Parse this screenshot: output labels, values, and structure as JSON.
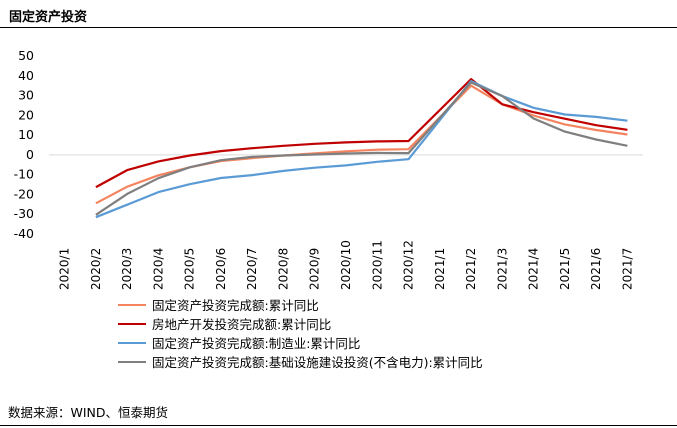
{
  "title": "固定资产投资",
  "source": "数据来源：WIND、恒泰期货",
  "chart_data": {
    "type": "line",
    "categories": [
      "2020/1",
      "2020/2",
      "2020/3",
      "2020/4",
      "2020/5",
      "2020/6",
      "2020/7",
      "2020/8",
      "2020/9",
      "2020/10",
      "2020/11",
      "2020/12",
      "2021/1",
      "2021/2",
      "2021/3",
      "2021/4",
      "2021/5",
      "2021/6",
      "2021/7"
    ],
    "ylim": [
      -40,
      50
    ],
    "yticks": [
      50,
      40,
      30,
      20,
      10,
      0,
      -10,
      -20,
      -30,
      -40
    ],
    "grid": false,
    "legend_position": "bottom",
    "series": [
      {
        "name": "固定资产投资完成额:累计同比",
        "color": "#F4845F",
        "values": [
          null,
          -24.5,
          -16.1,
          -10.3,
          -6.3,
          -3.1,
          -1.6,
          -0.3,
          0.8,
          1.8,
          2.6,
          2.9,
          null,
          35.0,
          25.6,
          19.9,
          15.4,
          12.6,
          10.3
        ]
      },
      {
        "name": "房地产开发投资完成额:累计同比",
        "color": "#C00000",
        "values": [
          null,
          -16.3,
          -7.7,
          -3.3,
          -0.3,
          1.9,
          3.4,
          4.6,
          5.6,
          6.3,
          6.8,
          7.0,
          null,
          38.3,
          25.6,
          21.6,
          18.3,
          15.0,
          12.7
        ]
      },
      {
        "name": "固定资产投资完成额:制造业:累计同比",
        "color": "#5B9BD5",
        "values": [
          null,
          -31.5,
          -25.2,
          -18.8,
          -14.8,
          -11.7,
          -10.2,
          -8.1,
          -6.5,
          -5.3,
          -3.5,
          -2.2,
          null,
          37.3,
          29.8,
          23.8,
          20.4,
          19.2,
          17.3
        ]
      },
      {
        "name": "固定资产投资完成额:基础设施建设投资(不含电力):累计同比",
        "color": "#7F7F7F",
        "values": [
          null,
          -30.3,
          -19.7,
          -11.8,
          -6.3,
          -2.7,
          -1.0,
          -0.3,
          0.2,
          0.7,
          1.0,
          0.9,
          null,
          36.6,
          29.7,
          18.4,
          11.8,
          7.8,
          4.6
        ]
      }
    ]
  }
}
